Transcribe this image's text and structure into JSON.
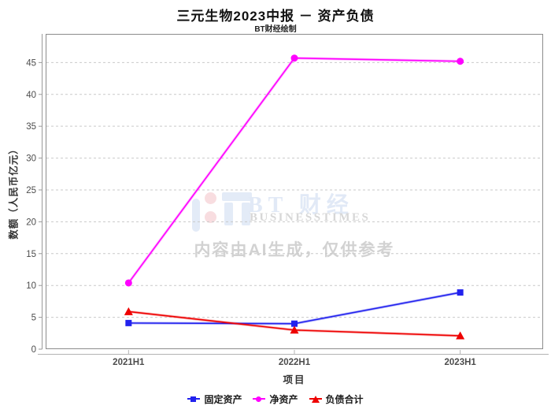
{
  "header": {
    "title": "三元生物2023中报 － 资产负债",
    "subtitle": "BT财经绘制"
  },
  "watermark": {
    "logo_icon": "bt-logo",
    "logo_text": "BT 财经",
    "logo_subtext": "BUSINESSTIMES",
    "notice": "内容由AI生成，仅供参考"
  },
  "chart_data": {
    "type": "line",
    "title": "三元生物2023中报 － 资产负债",
    "categories": [
      "2021H1",
      "2022H1",
      "2023H1"
    ],
    "series": [
      {
        "name": "固定资产",
        "marker": "square",
        "color": "#2222ee",
        "values": [
          4.1,
          4.0,
          8.9
        ]
      },
      {
        "name": "净资产",
        "marker": "circle",
        "color": "#ff00ff",
        "values": [
          10.4,
          45.7,
          45.2
        ]
      },
      {
        "name": "负债合计",
        "marker": "triangle",
        "color": "#ee0000",
        "values": [
          5.9,
          3.0,
          2.1
        ]
      }
    ],
    "xlabel": "项目",
    "ylabel": "数额（人民币亿元）",
    "ylim": [
      0,
      49.5
    ],
    "y_ticks": [
      0,
      5,
      10,
      15,
      20,
      25,
      30,
      35,
      40,
      45
    ],
    "grid": true,
    "grid_style": "dashed",
    "legend_position": "bottom"
  }
}
